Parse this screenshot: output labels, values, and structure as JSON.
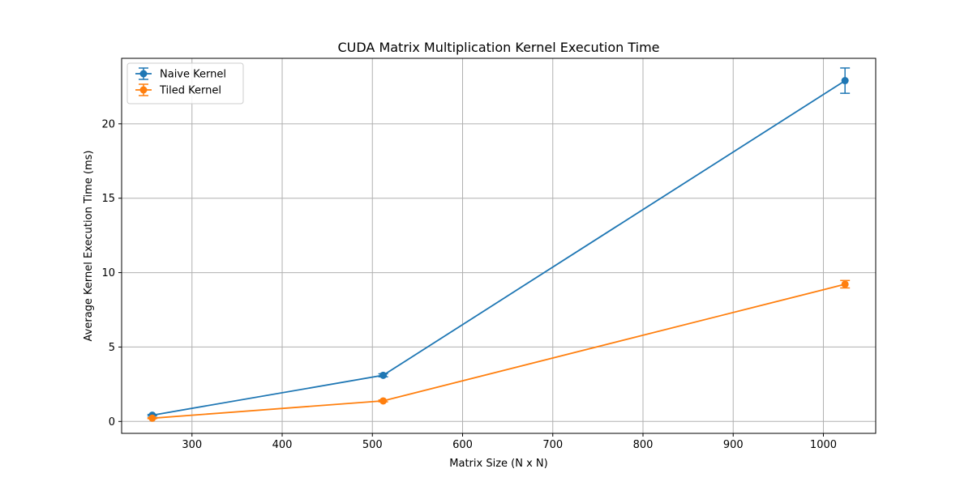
{
  "chart_data": {
    "type": "line",
    "title": "CUDA Matrix Multiplication Kernel Execution Time",
    "xlabel": "Matrix Size (N x N)",
    "ylabel": "Average Kernel Execution Time (ms)",
    "xlim": [
      222,
      1058
    ],
    "ylim": [
      -0.8,
      24.4
    ],
    "xticks": [
      300,
      400,
      500,
      600,
      700,
      800,
      900,
      1000
    ],
    "yticks": [
      0,
      5,
      10,
      15,
      20
    ],
    "grid": true,
    "legend_position": "top-left",
    "series": [
      {
        "name": "Naive Kernel",
        "color": "#1f77b4",
        "x": [
          256,
          512,
          1024
        ],
        "y": [
          0.42,
          3.1,
          22.9
        ],
        "err": [
          0.05,
          0.1,
          0.85
        ]
      },
      {
        "name": "Tiled Kernel",
        "color": "#ff7f0e",
        "x": [
          256,
          512,
          1024
        ],
        "y": [
          0.22,
          1.38,
          9.22
        ],
        "err": [
          0.03,
          0.06,
          0.25
        ]
      }
    ]
  }
}
